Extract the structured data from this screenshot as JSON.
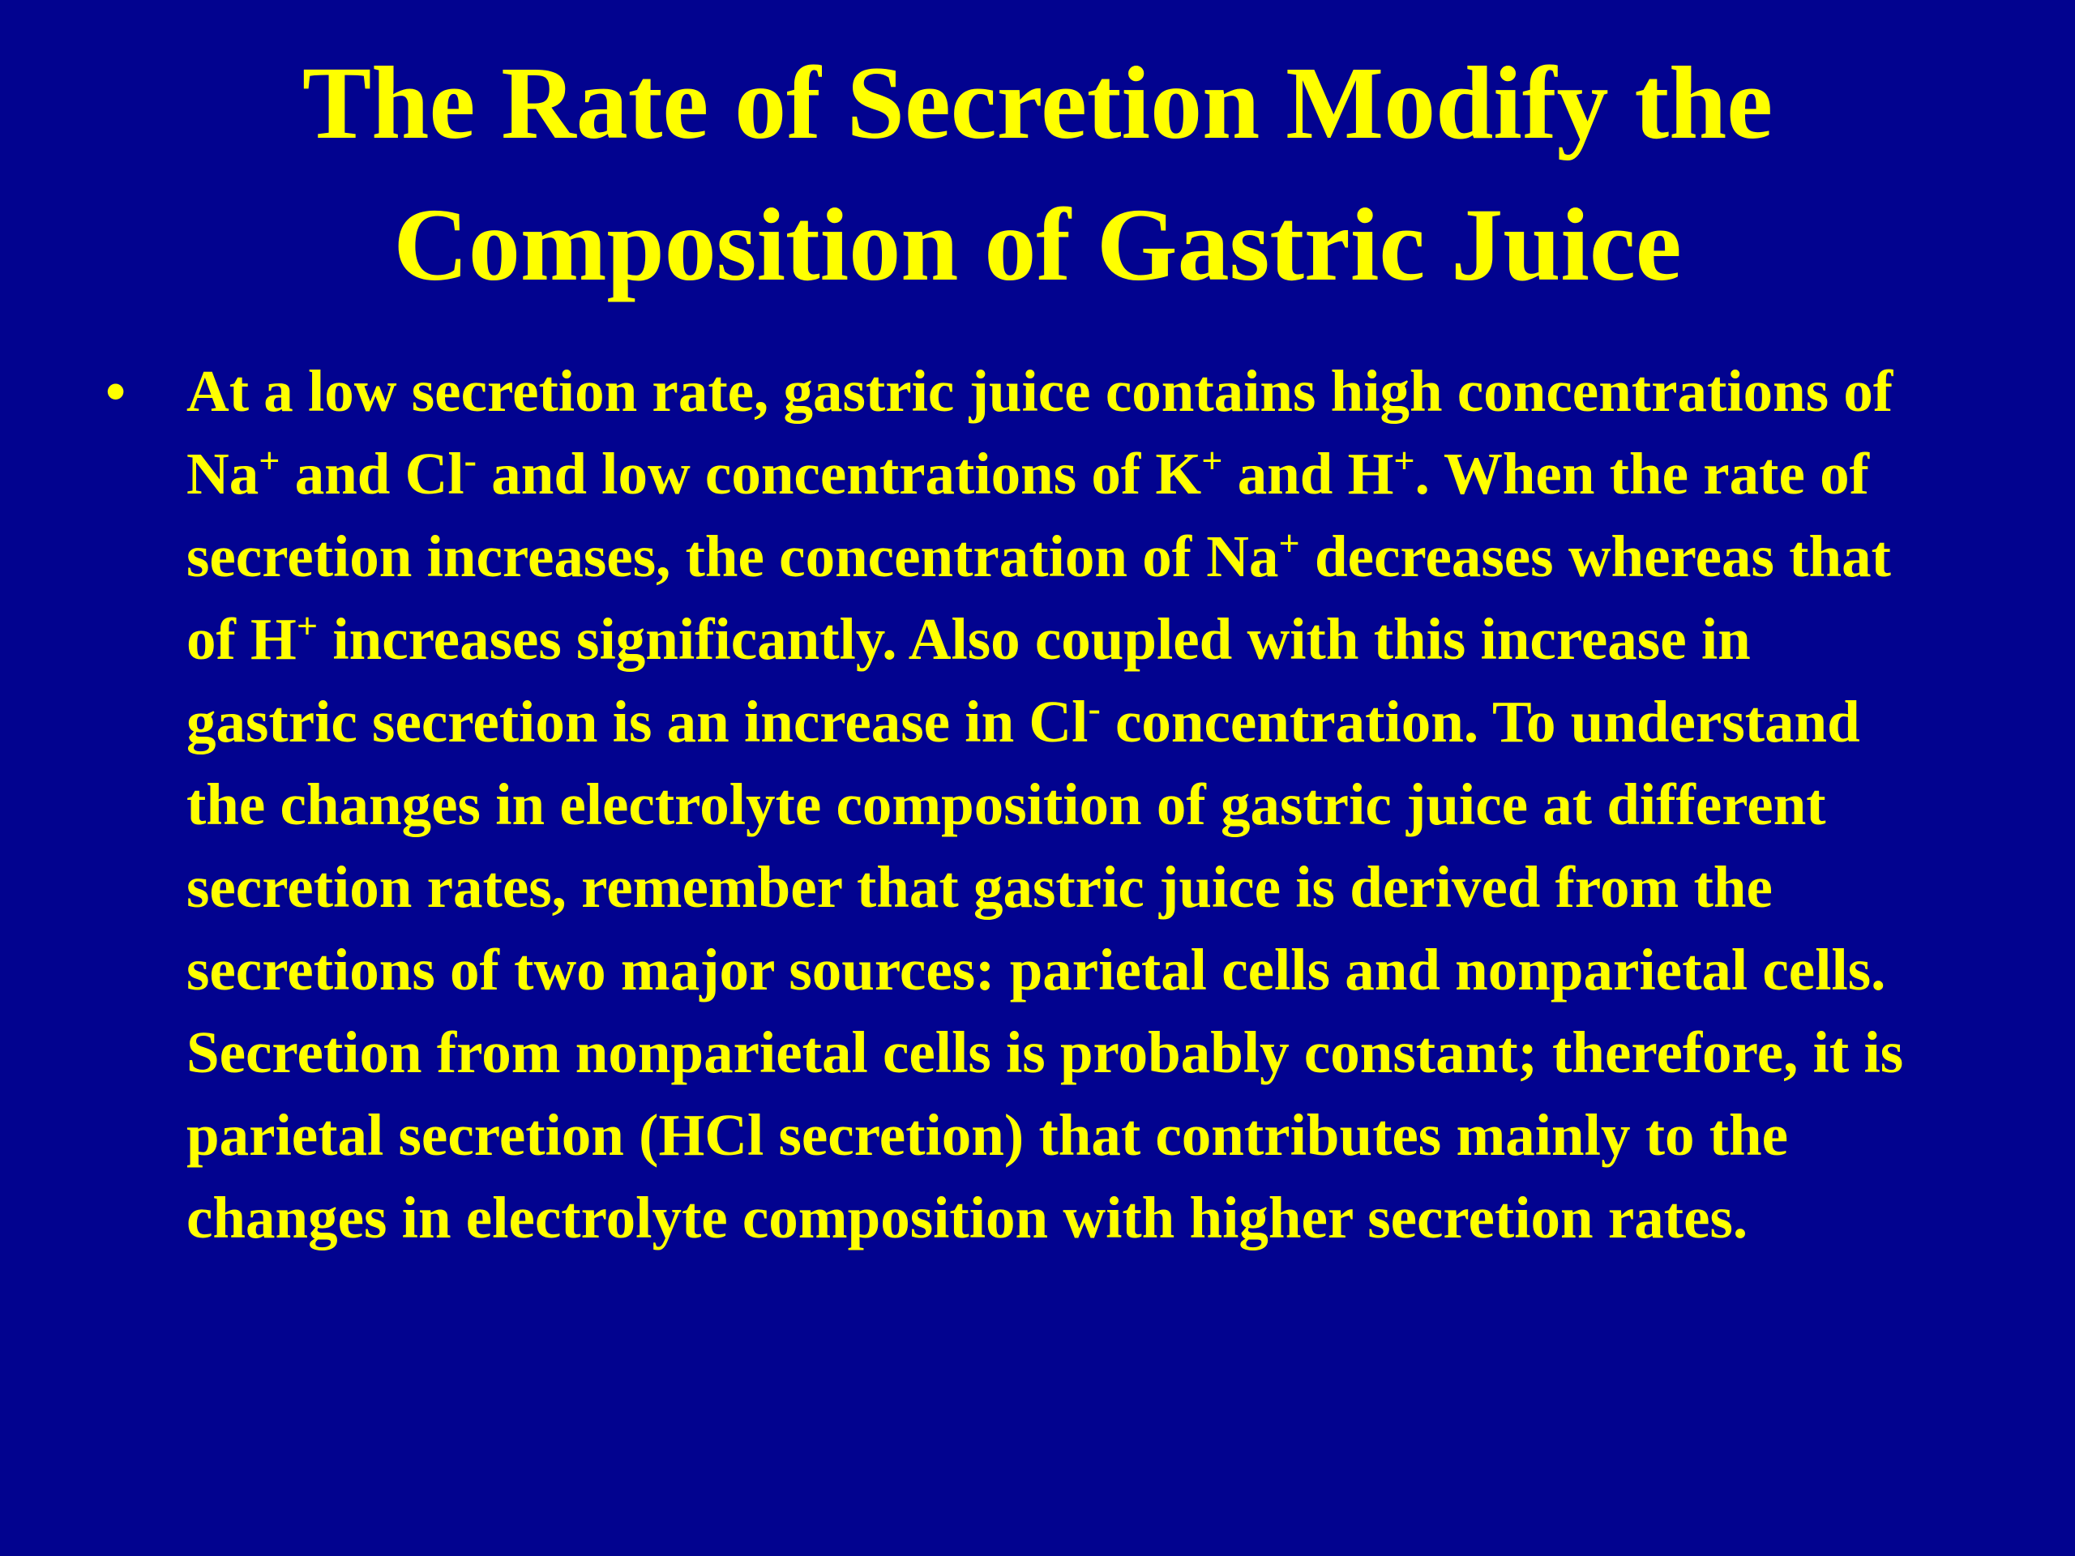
{
  "slide": {
    "title": [
      "The Rate of Secretion Modify the",
      "Composition of Gastric Juice"
    ],
    "bullet": {
      "marker": "•",
      "segments": [
        {
          "text": "At a low secretion rate, gastric juice contains high concentrations of Na",
          "sup": "+"
        },
        {
          "text": " and Cl",
          "sup": "-"
        },
        {
          "text": " and low concentrations of K",
          "sup": "+"
        },
        {
          "text": " and H",
          "sup": "+"
        },
        {
          "text": ". When the rate of secretion increases, the concentration of Na",
          "sup": "+"
        },
        {
          "text": " decreases whereas that of H",
          "sup": "+"
        },
        {
          "text": " increases significantly. Also coupled with this increase in gastric secretion is an increase in Cl",
          "sup": "-"
        },
        {
          "text": " concentration. To understand the changes in electrolyte composition of gastric juice at different secretion rates, remember that gastric juice is derived from the secretions of two major sources: parietal cells and nonparietal cells. Secretion from nonparietal cells is probably constant; therefore, it is parietal secretion (HCl secretion) that contributes mainly to the changes in electrolyte composition with higher secretion rates."
        }
      ]
    }
  }
}
